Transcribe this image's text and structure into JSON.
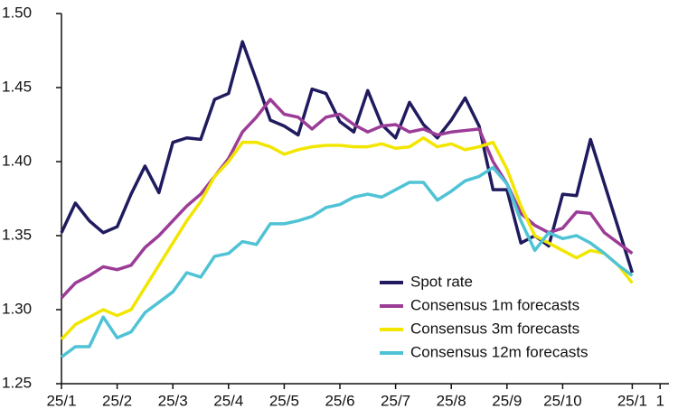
{
  "chart_data": {
    "type": "line",
    "categories": [
      "25/1",
      null,
      null,
      null,
      "25/2",
      null,
      null,
      null,
      "25/3",
      null,
      null,
      null,
      "25/4",
      null,
      null,
      null,
      "25/5",
      null,
      null,
      null,
      "25/6",
      null,
      null,
      null,
      "25/7",
      null,
      null,
      null,
      "25/8",
      null,
      null,
      null,
      "25/9",
      null,
      null,
      null,
      "25/10",
      null,
      null,
      null,
      null,
      "25/1",
      null,
      "1"
    ],
    "series": [
      {
        "name": "Spot rate",
        "color": "#1f1b5e",
        "values": [
          1.352,
          1.372,
          1.36,
          1.352,
          1.356,
          1.378,
          1.397,
          1.379,
          1.413,
          1.416,
          1.415,
          1.442,
          1.446,
          1.481,
          1.455,
          1.428,
          1.424,
          1.418,
          1.449,
          1.446,
          1.427,
          1.42,
          1.448,
          1.425,
          1.416,
          1.44,
          1.425,
          1.416,
          1.428,
          1.443,
          1.424,
          1.381,
          1.381,
          1.345,
          1.35,
          1.343,
          1.378,
          1.377,
          1.415,
          1.385,
          1.355,
          1.325,
          null,
          null
        ]
      },
      {
        "name": "Consensus 1m forecasts",
        "color": "#9b3d97",
        "values": [
          1.308,
          1.318,
          1.323,
          1.329,
          1.327,
          1.33,
          1.342,
          1.35,
          1.36,
          1.37,
          1.378,
          1.39,
          1.402,
          1.42,
          1.43,
          1.442,
          1.432,
          1.43,
          1.422,
          1.43,
          1.432,
          1.425,
          1.42,
          1.424,
          1.425,
          1.42,
          1.422,
          1.418,
          1.42,
          1.421,
          1.422,
          1.4,
          1.385,
          1.365,
          1.357,
          1.352,
          1.355,
          1.366,
          1.365,
          1.352,
          1.345,
          1.338,
          null,
          null
        ]
      },
      {
        "name": "Consensus 3m forecasts",
        "color": "#f2e600",
        "values": [
          1.28,
          1.29,
          1.295,
          1.3,
          1.296,
          1.3,
          1.315,
          1.33,
          1.345,
          1.36,
          1.373,
          1.39,
          1.4,
          1.413,
          1.413,
          1.41,
          1.405,
          1.408,
          1.41,
          1.411,
          1.411,
          1.41,
          1.41,
          1.412,
          1.409,
          1.41,
          1.416,
          1.41,
          1.412,
          1.408,
          1.41,
          1.413,
          1.395,
          1.37,
          1.35,
          1.345,
          1.34,
          1.335,
          1.34,
          1.338,
          1.33,
          1.318,
          null,
          null
        ]
      },
      {
        "name": "Consensus 12m forecasts",
        "color": "#4fc3d5",
        "values": [
          1.268,
          1.275,
          1.275,
          1.295,
          1.281,
          1.285,
          1.298,
          1.305,
          1.312,
          1.325,
          1.322,
          1.336,
          1.338,
          1.346,
          1.344,
          1.358,
          1.358,
          1.36,
          1.363,
          1.369,
          1.371,
          1.376,
          1.378,
          1.376,
          1.381,
          1.386,
          1.386,
          1.374,
          1.38,
          1.387,
          1.39,
          1.396,
          1.385,
          1.36,
          1.34,
          1.352,
          1.348,
          1.35,
          1.345,
          1.338,
          1.33,
          1.323,
          null,
          null
        ]
      }
    ],
    "ylim": [
      1.25,
      1.5
    ],
    "yticks": [
      {
        "value": 1.25,
        "label": "1.25"
      },
      {
        "value": 1.3,
        "label": "1.30"
      },
      1.35,
      {
        "value": 1.4,
        "label": "1.40"
      },
      1.45,
      {
        "value": 1.5,
        "label": "1.50"
      }
    ],
    "grid": false,
    "legend": "lower right"
  }
}
